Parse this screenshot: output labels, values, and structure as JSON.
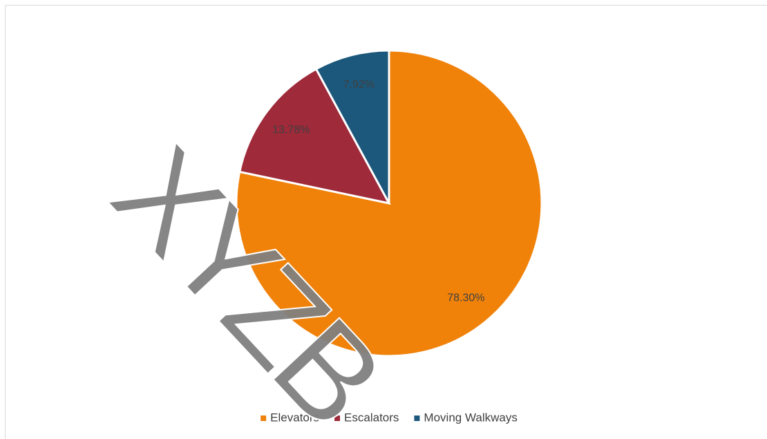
{
  "chart_data": {
    "type": "pie",
    "categories": [
      "Elevators",
      "Escalators",
      "Moving Walkways"
    ],
    "series": [
      {
        "name": null,
        "values": [
          78.3,
          13.78,
          7.92
        ],
        "value_labels": [
          "78.30%",
          "13.78%",
          "7.92%"
        ]
      }
    ],
    "colors": [
      "#f0820a",
      "#9e2a3a",
      "#1b587c"
    ],
    "legend": "bottom",
    "watermark": "XYZB"
  }
}
